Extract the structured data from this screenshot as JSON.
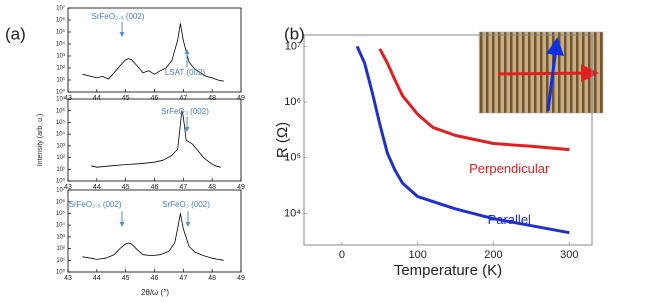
{
  "chart_data": [
    {
      "type": "line",
      "panel_label": "(a)",
      "log_y": true,
      "annotations": [
        "SrFeO₂.₅ (002)",
        "LSAT (002)"
      ],
      "xlim": [
        43,
        49
      ],
      "xticks": [
        43,
        44,
        45,
        46,
        47,
        48,
        49
      ],
      "ylim": [
        1,
        10000000
      ],
      "yticks": [
        {
          "value": 1,
          "label": "10⁰"
        },
        {
          "value": 10,
          "label": "10¹"
        },
        {
          "value": 100,
          "label": "10²"
        },
        {
          "value": 1000,
          "label": "10³"
        },
        {
          "value": 10000,
          "label": "10⁴"
        },
        {
          "value": 100000,
          "label": "10⁵"
        },
        {
          "value": 1000000,
          "label": "10⁶"
        },
        {
          "value": 10000000,
          "label": "10⁷"
        }
      ],
      "series": [
        {
          "color": "#000000",
          "x": [
            43.5,
            43.8,
            44.0,
            44.2,
            44.4,
            44.6,
            44.8,
            45.0,
            45.1,
            45.2,
            45.4,
            45.6,
            45.8,
            46.0,
            46.2,
            46.4,
            46.6,
            46.8,
            46.9,
            47.0,
            47.2,
            47.4,
            47.6,
            47.8,
            48.0,
            48.2,
            48.4
          ],
          "values": [
            30,
            20,
            15,
            20,
            12,
            40,
            150,
            500,
            600,
            500,
            150,
            40,
            60,
            30,
            60,
            100,
            400,
            20000,
            500000,
            20000,
            300,
            80,
            40,
            20,
            15,
            10,
            8
          ]
        }
      ]
    },
    {
      "type": "line",
      "log_y": true,
      "ylabel": "Intensity (arb. u.)",
      "annotations": [
        "SrFeO₃ (002)"
      ],
      "xlim": [
        43,
        49
      ],
      "xticks": [
        43,
        44,
        45,
        46,
        47,
        48,
        49
      ],
      "ylim": [
        1,
        10000000
      ],
      "yticks": [
        {
          "value": 1,
          "label": "10⁰"
        },
        {
          "value": 10,
          "label": "10¹"
        },
        {
          "value": 100,
          "label": "10²"
        },
        {
          "value": 1000,
          "label": "10³"
        },
        {
          "value": 10000,
          "label": "10⁴"
        },
        {
          "value": 100000,
          "label": "10⁵"
        },
        {
          "value": 1000000,
          "label": "10⁶"
        },
        {
          "value": 10000000,
          "label": "10⁷"
        }
      ],
      "series": [
        {
          "color": "#000000",
          "x": [
            43.8,
            44.0,
            44.5,
            45.0,
            45.5,
            46.0,
            46.3,
            46.6,
            46.8,
            46.95,
            47.0,
            47.1,
            47.3,
            47.5,
            47.7,
            47.9,
            48.1,
            48.3
          ],
          "values": [
            20,
            15,
            20,
            25,
            30,
            40,
            60,
            150,
            500,
            1000000,
            300000,
            3000,
            1500,
            400,
            100,
            40,
            20,
            15
          ]
        }
      ]
    },
    {
      "type": "line",
      "log_y": true,
      "xlabel": "2θ/ω (°)",
      "annotations": [
        "SrFeO₂.₅ (002)",
        "SrFeO₃ (002)"
      ],
      "xlim": [
        43,
        49
      ],
      "xticks": [
        43,
        44,
        45,
        46,
        47,
        48,
        49
      ],
      "ylim": [
        1,
        10000000
      ],
      "yticks": [
        {
          "value": 1,
          "label": "10⁰"
        },
        {
          "value": 10,
          "label": "10¹"
        },
        {
          "value": 100,
          "label": "10²"
        },
        {
          "value": 1000,
          "label": "10³"
        },
        {
          "value": 10000,
          "label": "10⁴"
        },
        {
          "value": 100000,
          "label": "10⁵"
        },
        {
          "value": 1000000,
          "label": "10⁶"
        },
        {
          "value": 10000000,
          "label": "10⁷"
        }
      ],
      "series": [
        {
          "color": "#000000",
          "x": [
            43.5,
            43.8,
            44.0,
            44.3,
            44.6,
            44.8,
            45.0,
            45.1,
            45.2,
            45.4,
            45.6,
            45.9,
            46.2,
            46.5,
            46.7,
            46.8,
            46.9,
            47.0,
            47.2,
            47.4,
            47.7,
            48.0,
            48.2,
            48.4
          ],
          "values": [
            20,
            15,
            12,
            15,
            30,
            100,
            250,
            300,
            250,
            80,
            30,
            25,
            30,
            60,
            300,
            5000,
            100000,
            5000,
            150,
            50,
            25,
            15,
            12,
            10
          ]
        }
      ]
    },
    {
      "type": "line",
      "panel_label": "(b)",
      "log_y": true,
      "xlabel": "Temperature (K)",
      "ylabel": "R (Ω)",
      "xlim": [
        -50,
        330
      ],
      "xticks": [
        0,
        100,
        200,
        300
      ],
      "ylim": [
        2700,
        16000000
      ],
      "yticks": [
        {
          "value": 10000,
          "label": "10⁴"
        },
        {
          "value": 100000,
          "label": "10⁵"
        },
        {
          "value": 1000000,
          "label": "10⁶"
        },
        {
          "value": 10000000,
          "label": "10⁷"
        }
      ],
      "series": [
        {
          "name": "Perpendicular",
          "color": "#e02020",
          "x": [
            50,
            60,
            70,
            80,
            100,
            120,
            150,
            200,
            250,
            300
          ],
          "values": [
            9000000,
            5000000,
            2500000,
            1300000,
            600000,
            350000,
            250000,
            180000,
            160000,
            140000
          ]
        },
        {
          "name": "Parallel",
          "color": "#2030d0",
          "x": [
            20,
            30,
            40,
            50,
            60,
            70,
            80,
            100,
            150,
            200,
            250,
            300
          ],
          "values": [
            10000000,
            5000000,
            1500000,
            400000,
            120000,
            60000,
            35000,
            20000,
            12000,
            8000,
            6000,
            4500
          ]
        }
      ]
    }
  ]
}
